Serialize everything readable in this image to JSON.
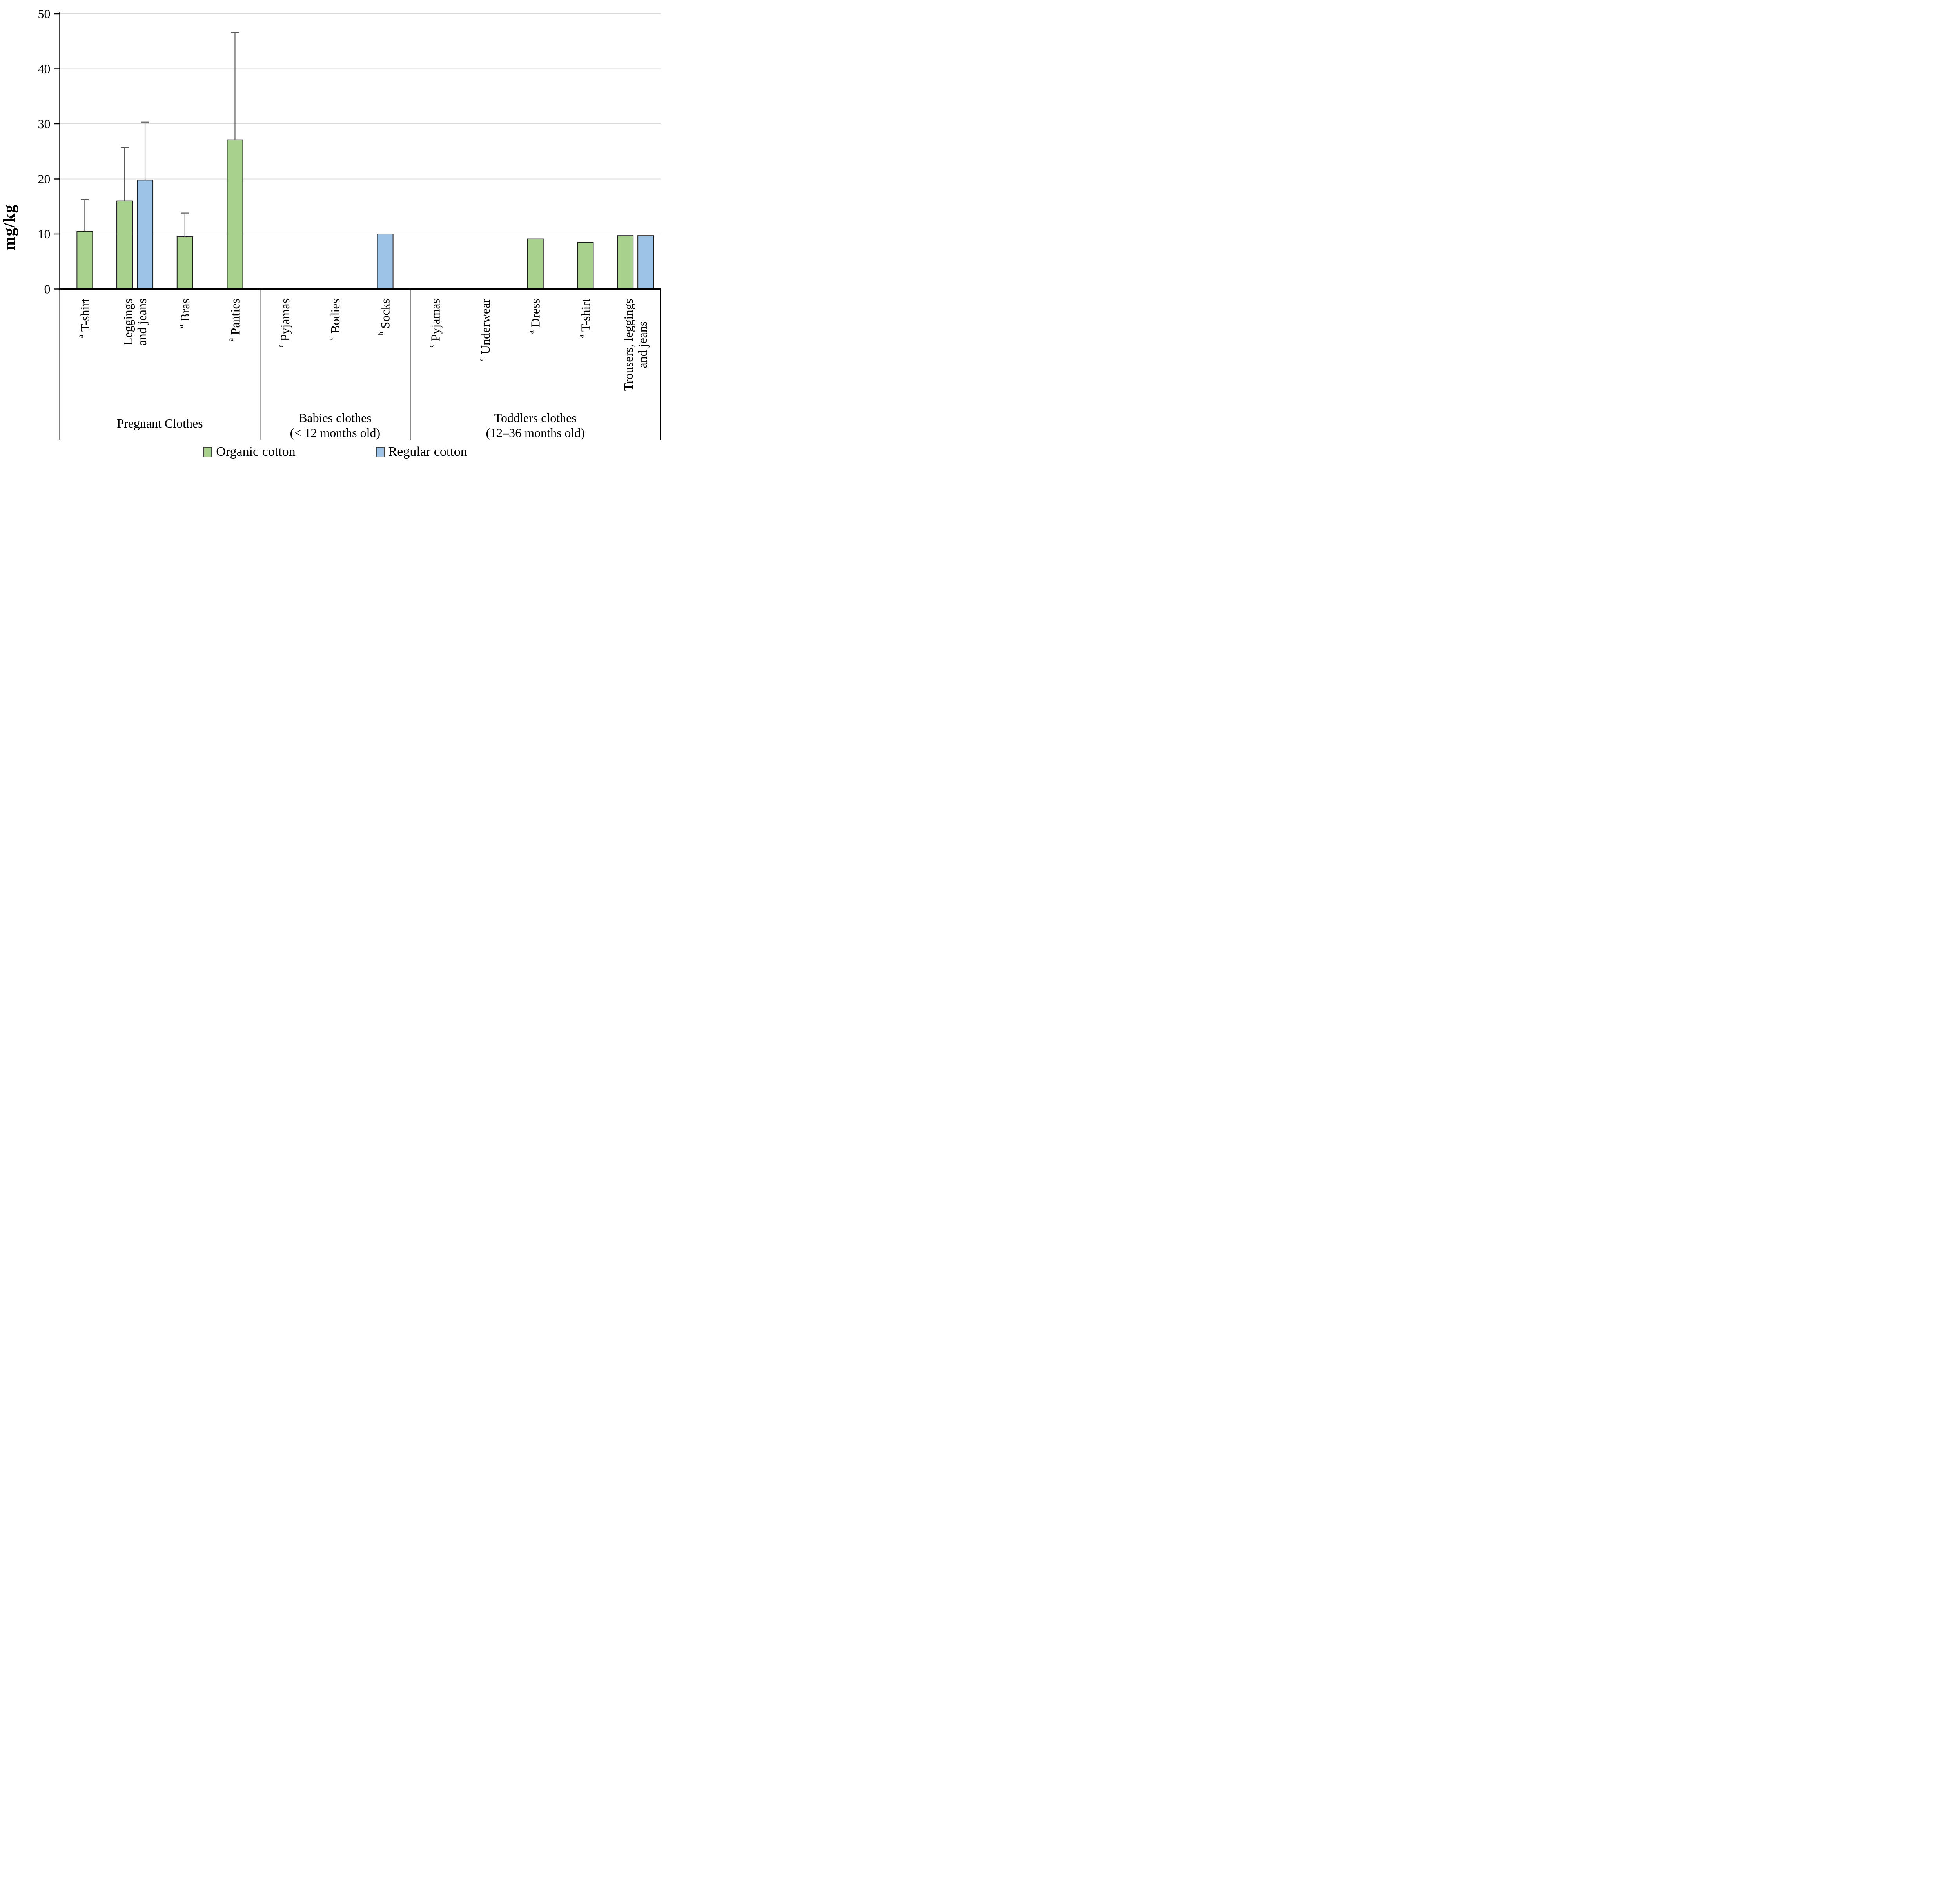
{
  "chart_data": {
    "type": "bar",
    "ylabel": "mg/kg",
    "ylim": [
      0,
      50
    ],
    "yticks": [
      0,
      10,
      20,
      30,
      40,
      50
    ],
    "grid": "horizontal-light-gray",
    "legend_position": "bottom-center",
    "series": [
      {
        "id": "organic",
        "name": "Organic cotton",
        "color": "#A9D18E"
      },
      {
        "id": "regular",
        "name": "Regular cotton",
        "color": "#9DC3E6"
      }
    ],
    "colors": {
      "bar_border": "#1a1a1a",
      "error_bar": "#595959",
      "gridline": "#d9d9d9",
      "axis": "#000000",
      "text": "#000000"
    },
    "groups": [
      {
        "label_lines": [
          "Pregnant Clothes"
        ],
        "items": [
          {
            "sup": "a",
            "label_lines": [
              "T-shirt"
            ],
            "bars": [
              {
                "series": "organic",
                "value": 10.5,
                "err_top": 16.2
              }
            ]
          },
          {
            "sup": "",
            "label_lines": [
              "Leggings",
              "and jeans"
            ],
            "bars": [
              {
                "series": "organic",
                "value": 16.0,
                "err_top": 25.7
              },
              {
                "series": "regular",
                "value": 19.8,
                "err_top": 30.3
              }
            ]
          },
          {
            "sup": "a",
            "label_lines": [
              "Bras"
            ],
            "bars": [
              {
                "series": "organic",
                "value": 9.5,
                "err_top": 13.8
              }
            ]
          },
          {
            "sup": "a",
            "label_lines": [
              "Panties"
            ],
            "bars": [
              {
                "series": "organic",
                "value": 27.1,
                "err_top": 46.6
              }
            ]
          }
        ]
      },
      {
        "label_lines": [
          "Babies clothes",
          "(< 12 months old)"
        ],
        "items": [
          {
            "sup": "c",
            "label_lines": [
              "Pyjamas"
            ],
            "bars": []
          },
          {
            "sup": "c",
            "label_lines": [
              "Bodies"
            ],
            "bars": []
          },
          {
            "sup": "b",
            "label_lines": [
              "Socks"
            ],
            "bars": [
              {
                "series": "regular",
                "value": 10.0
              }
            ]
          }
        ]
      },
      {
        "label_lines": [
          "Toddlers clothes",
          "(12–36 months old)"
        ],
        "items": [
          {
            "sup": "c",
            "label_lines": [
              "Pyjamas"
            ],
            "bars": []
          },
          {
            "sup": "c",
            "label_lines": [
              "Underwear"
            ],
            "bars": []
          },
          {
            "sup": "a",
            "label_lines": [
              "Dress"
            ],
            "bars": [
              {
                "series": "organic",
                "value": 9.1
              }
            ]
          },
          {
            "sup": "a",
            "label_lines": [
              "T-shirt"
            ],
            "bars": [
              {
                "series": "organic",
                "value": 8.5
              }
            ]
          },
          {
            "sup": "",
            "label_lines": [
              "Trousers, leggings",
              "and jeans"
            ],
            "bars": [
              {
                "series": "organic",
                "value": 9.7
              },
              {
                "series": "regular",
                "value": 9.7
              }
            ]
          }
        ]
      }
    ]
  }
}
